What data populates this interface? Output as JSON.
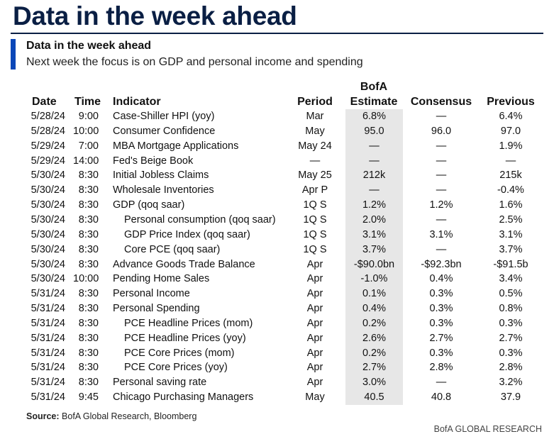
{
  "page_title": "Data in the week ahead",
  "subtitle": "Data in the week ahead",
  "subheading": "Next week the focus is on GDP and personal income and spending",
  "columns": {
    "date": "Date",
    "time": "Time",
    "indicator": "Indicator",
    "period": "Period",
    "estimate_line1": "BofA",
    "estimate_line2": "Estimate",
    "consensus": "Consensus",
    "previous": "Previous"
  },
  "rows": [
    {
      "date": "5/28/24",
      "time": "9:00",
      "indicator": "Case-Shiller HPI (yoy)",
      "sub": false,
      "period": "Mar",
      "estimate": "6.8%",
      "consensus": "—",
      "previous": "6.4%"
    },
    {
      "date": "5/28/24",
      "time": "10:00",
      "indicator": "Consumer Confidence",
      "sub": false,
      "period": "May",
      "estimate": "95.0",
      "consensus": "96.0",
      "previous": "97.0"
    },
    {
      "date": "5/29/24",
      "time": "7:00",
      "indicator": "MBA Mortgage Applications",
      "sub": false,
      "period": "May 24",
      "estimate": "—",
      "consensus": "—",
      "previous": "1.9%"
    },
    {
      "date": "5/29/24",
      "time": "14:00",
      "indicator": "Fed's Beige Book",
      "sub": false,
      "period": "—",
      "estimate": "—",
      "consensus": "—",
      "previous": "—"
    },
    {
      "date": "5/30/24",
      "time": "8:30",
      "indicator": "Initial Jobless Claims",
      "sub": false,
      "period": "May 25",
      "estimate": "212k",
      "consensus": "—",
      "previous": "215k"
    },
    {
      "date": "5/30/24",
      "time": "8:30",
      "indicator": "Wholesale Inventories",
      "sub": false,
      "period": "Apr P",
      "estimate": "—",
      "consensus": "—",
      "previous": "-0.4%"
    },
    {
      "date": "5/30/24",
      "time": "8:30",
      "indicator": "GDP (qoq saar)",
      "sub": false,
      "period": "1Q S",
      "estimate": "1.2%",
      "consensus": "1.2%",
      "previous": "1.6%"
    },
    {
      "date": "5/30/24",
      "time": "8:30",
      "indicator": "Personal consumption (qoq saar)",
      "sub": true,
      "period": "1Q S",
      "estimate": "2.0%",
      "consensus": "—",
      "previous": "2.5%"
    },
    {
      "date": "5/30/24",
      "time": "8:30",
      "indicator": "GDP Price Index (qoq saar)",
      "sub": true,
      "period": "1Q S",
      "estimate": "3.1%",
      "consensus": "3.1%",
      "previous": "3.1%"
    },
    {
      "date": "5/30/24",
      "time": "8:30",
      "indicator": "Core PCE (qoq saar)",
      "sub": true,
      "period": "1Q S",
      "estimate": "3.7%",
      "consensus": "—",
      "previous": "3.7%"
    },
    {
      "date": "5/30/24",
      "time": "8:30",
      "indicator": "Advance Goods Trade Balance",
      "sub": false,
      "period": "Apr",
      "estimate": "-$90.0bn",
      "consensus": "-$92.3bn",
      "previous": "-$91.5b"
    },
    {
      "date": "5/30/24",
      "time": "10:00",
      "indicator": "Pending Home Sales",
      "sub": false,
      "period": "Apr",
      "estimate": "-1.0%",
      "consensus": "0.4%",
      "previous": "3.4%"
    },
    {
      "date": "5/31/24",
      "time": "8:30",
      "indicator": "Personal Income",
      "sub": false,
      "period": "Apr",
      "estimate": "0.1%",
      "consensus": "0.3%",
      "previous": "0.5%"
    },
    {
      "date": "5/31/24",
      "time": "8:30",
      "indicator": "Personal Spending",
      "sub": false,
      "period": "Apr",
      "estimate": "0.4%",
      "consensus": "0.3%",
      "previous": "0.8%"
    },
    {
      "date": "5/31/24",
      "time": "8:30",
      "indicator": "PCE Headline Prices (mom)",
      "sub": true,
      "period": "Apr",
      "estimate": "0.2%",
      "consensus": "0.3%",
      "previous": "0.3%"
    },
    {
      "date": "5/31/24",
      "time": "8:30",
      "indicator": "PCE Headline Prices (yoy)",
      "sub": true,
      "period": "Apr",
      "estimate": "2.6%",
      "consensus": "2.7%",
      "previous": "2.7%"
    },
    {
      "date": "5/31/24",
      "time": "8:30",
      "indicator": "PCE Core Prices (mom)",
      "sub": true,
      "period": "Apr",
      "estimate": "0.2%",
      "consensus": "0.3%",
      "previous": "0.3%"
    },
    {
      "date": "5/31/24",
      "time": "8:30",
      "indicator": "PCE Core Prices (yoy)",
      "sub": true,
      "period": "Apr",
      "estimate": "2.7%",
      "consensus": "2.8%",
      "previous": "2.8%"
    },
    {
      "date": "5/31/24",
      "time": "8:30",
      "indicator": "Personal saving rate",
      "sub": false,
      "period": "Apr",
      "estimate": "3.0%",
      "consensus": "—",
      "previous": "3.2%"
    },
    {
      "date": "5/31/24",
      "time": "9:45",
      "indicator": "Chicago Purchasing Managers",
      "sub": false,
      "period": "May",
      "estimate": "40.5",
      "consensus": "40.8",
      "previous": "37.9"
    }
  ],
  "source_label": "Source:",
  "source_text": "BofA Global Research, Bloomberg",
  "footer_brand": "BofA GLOBAL RESEARCH"
}
